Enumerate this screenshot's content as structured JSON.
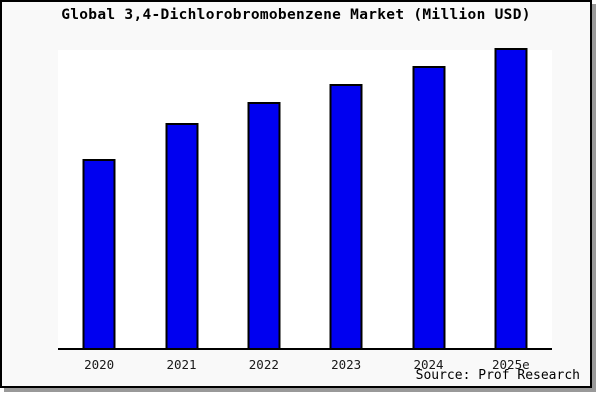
{
  "title": "Global 3,4-Dichlorobromobenzene Market (Million USD)",
  "source_credit": "Source: Prof Research",
  "colors": {
    "bar_fill": "#0000f0",
    "bar_border": "#000000",
    "plot_background": "#ffffff",
    "canvas_background": "#f9f9f9",
    "frame_border": "#000000",
    "frame_shadow": "#999999",
    "axis_line": "#000000",
    "tick_label": "#1a1a1a",
    "title_text": "#000000"
  },
  "chart_data": {
    "type": "bar",
    "title": "Global 3,4-Dichlorobromobenzene Market (Million USD)",
    "categories": [
      "2020",
      "2021",
      "2022",
      "2023",
      "2024",
      "2025e"
    ],
    "values": [
      63,
      75,
      82,
      88,
      94,
      100
    ],
    "ylim": [
      0,
      100
    ],
    "xlabel": "",
    "ylabel": "",
    "y_axis_labels_visible": false,
    "gridlines": false,
    "legend": false,
    "bar_color": "#0000f0",
    "annotation": "Source: Prof Research",
    "value_note": "No numeric y-axis is shown in the chart; values are bar heights relative to the tallest bar (2025e = 100)"
  }
}
